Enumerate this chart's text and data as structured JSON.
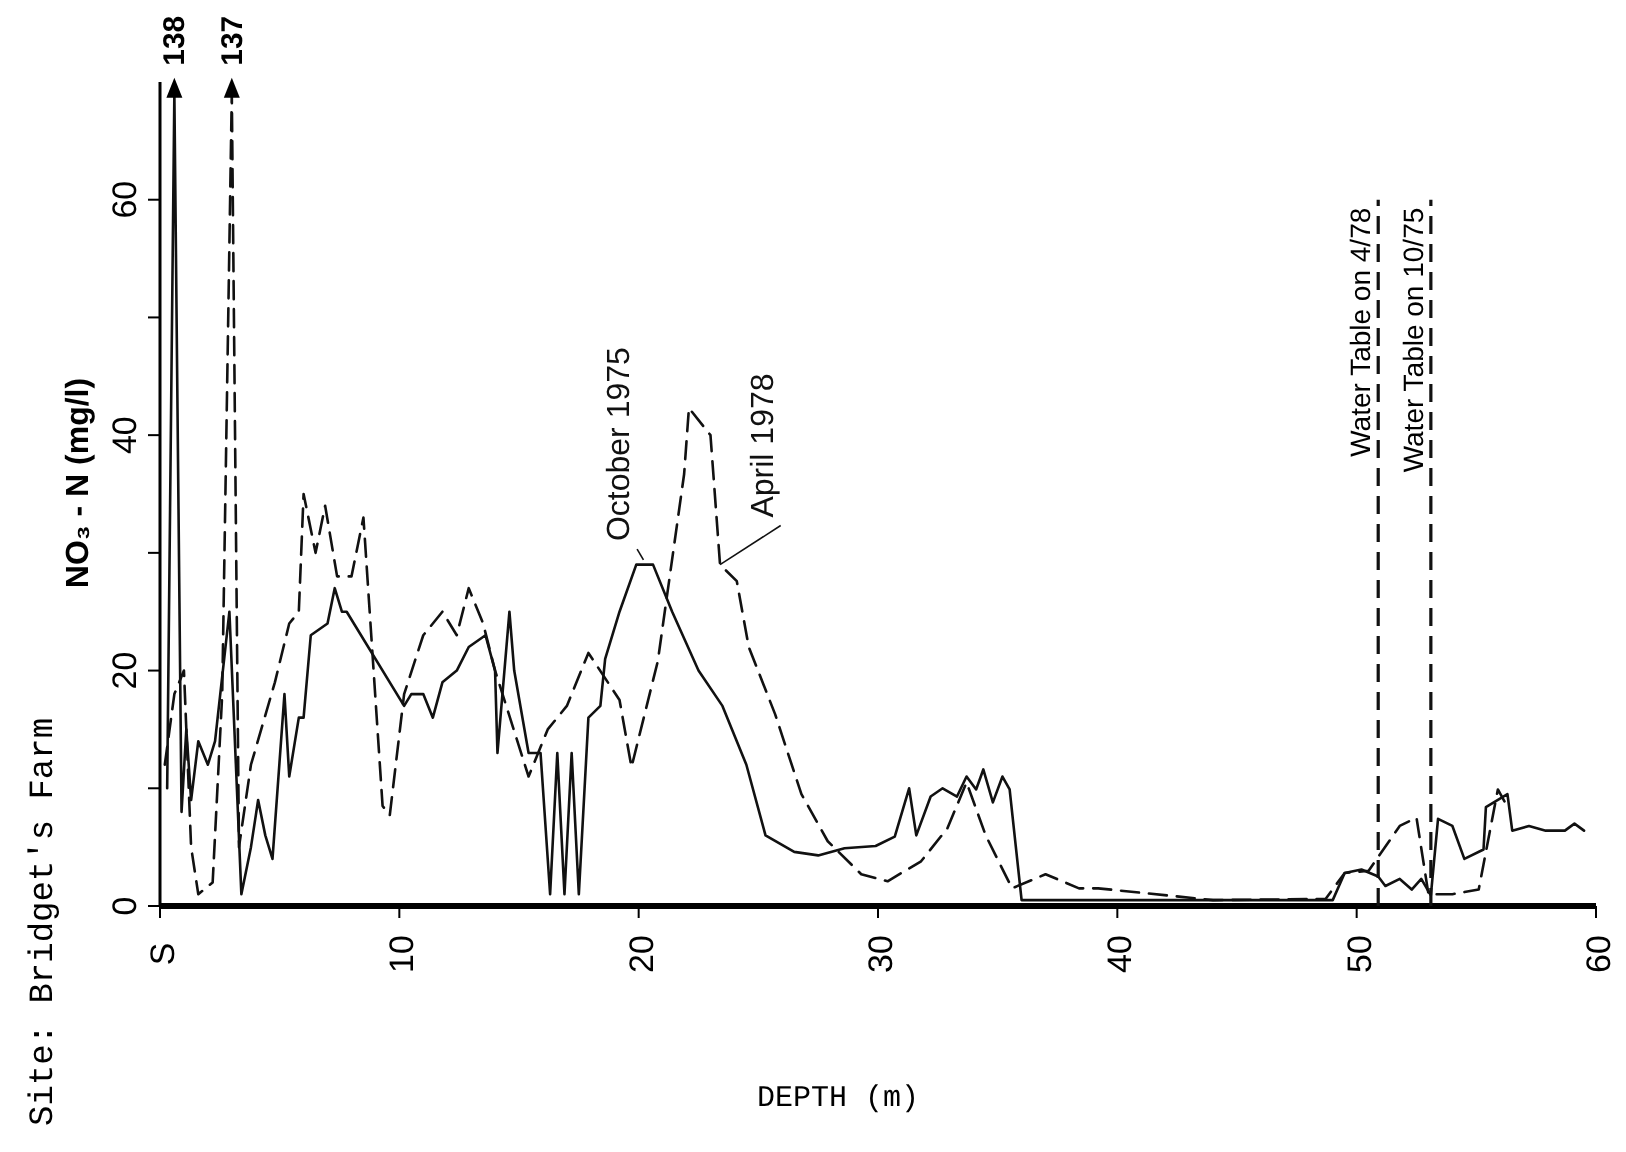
{
  "chart_data": {
    "type": "line",
    "title": "Site: Bridget's Farm",
    "xlabel": "DEPTH (m)",
    "ylabel": "NO₃ - N (mg/l)",
    "xlim": [
      0,
      60
    ],
    "xticks": [
      {
        "value": 0,
        "label": "S"
      },
      10,
      20,
      30,
      40,
      50,
      60
    ],
    "ylim": [
      0,
      70
    ],
    "yticks": [
      0,
      {
        "value": 10,
        "label": null
      },
      20,
      {
        "value": 30,
        "label": null
      },
      40,
      {
        "value": 50,
        "label": null
      },
      60
    ],
    "grid": false,
    "marker": "none",
    "series": [
      {
        "name": "October 1975",
        "color": "#111111",
        "line_style": "solid",
        "x": [
          0.3,
          0.6,
          0.9,
          1.1,
          1.3,
          1.6,
          2.0,
          2.3,
          2.9,
          3.4,
          3.8,
          4.1,
          4.4,
          4.7,
          5.2,
          5.4,
          5.8,
          6.0,
          6.3,
          7.0,
          7.3,
          7.6,
          7.8,
          10.2,
          10.5,
          11.0,
          11.4,
          11.8,
          12.4,
          12.9,
          13.6,
          14.0,
          14.1,
          14.6,
          14.8,
          15.4,
          15.9,
          16.3,
          16.6,
          16.9,
          17.2,
          17.5,
          17.9,
          18.4,
          18.6,
          19.2,
          19.9,
          20.6,
          21.4,
          22.5,
          23.5,
          24.5,
          25.3,
          26.5,
          27.5,
          28.6,
          29.9,
          30.7,
          31.3,
          31.6,
          32.2,
          32.7,
          33.3,
          33.7,
          34.1,
          34.4,
          34.8,
          35.2,
          35.5,
          36.0,
          49.0,
          49.5,
          50.2,
          50.9,
          51.2,
          51.8,
          52.3,
          52.7,
          53.1,
          53.4,
          54.0,
          54.5,
          55.3,
          55.4,
          56.3,
          56.5,
          57.2,
          57.9,
          58.7,
          59.1,
          59.5
        ],
        "values": [
          10,
          69,
          8,
          15,
          9,
          14,
          12,
          14,
          25,
          1,
          5,
          9,
          6,
          4,
          18,
          11,
          16,
          16,
          23,
          24,
          27,
          25,
          25,
          17,
          18,
          18,
          16,
          19,
          20,
          22,
          23,
          20,
          13,
          25,
          20,
          13,
          13,
          1,
          13,
          1,
          13,
          1,
          16,
          17,
          21,
          25,
          29,
          29,
          25,
          20,
          17,
          12,
          6,
          4.6,
          4.3,
          4.9,
          5.1,
          5.9,
          10,
          6,
          9.3,
          10,
          9.3,
          11,
          9.9,
          11.6,
          8.8,
          11,
          9.9,
          0.5,
          0.5,
          2.8,
          3.1,
          2.5,
          1.7,
          2.3,
          1.4,
          2.3,
          0.9,
          7.4,
          6.8,
          4,
          4.8,
          8.4,
          9.5,
          6.4,
          6.8,
          6.4,
          6.4,
          7,
          6.4
        ]
      },
      {
        "name": "April 1978",
        "color": "#111111",
        "line_style": "dashed",
        "x": [
          0.2,
          0.6,
          1.0,
          1.3,
          1.6,
          2.2,
          2.6,
          3.0,
          3.3,
          3.8,
          4.8,
          5.4,
          5.8,
          6.0,
          6.5,
          6.9,
          7.4,
          8.0,
          8.5,
          9.3,
          9.6,
          10.2,
          11.0,
          11.8,
          12.4,
          12.9,
          13.5,
          14.0,
          15.4,
          16.2,
          17.0,
          17.9,
          19.2,
          19.7,
          20.8,
          21.9,
          22.1,
          23.0,
          23.4,
          24.1,
          24.6,
          25.7,
          26.8,
          27.9,
          29.3,
          30.4,
          31.8,
          32.9,
          33.7,
          34.5,
          35.6,
          37.0,
          38.4,
          39.2,
          44.0,
          48.7,
          49.5,
          50.5,
          51.8,
          52.5,
          53.0,
          54.0,
          55.1,
          55.9,
          56.2
        ],
        "values": [
          12,
          18,
          20,
          5,
          1,
          2,
          18,
          69,
          5,
          12,
          19,
          24,
          25,
          35,
          30,
          34,
          28,
          28,
          33,
          8.5,
          7.7,
          18,
          23,
          25,
          23,
          27,
          24,
          20,
          11,
          15,
          17,
          21.5,
          17.5,
          11.8,
          20.8,
          36.7,
          42.3,
          40,
          29,
          27.6,
          22,
          16.3,
          9.5,
          5.5,
          2.7,
          2.1,
          3.8,
          6.6,
          10.5,
          6,
          1.5,
          2.7,
          1.5,
          1.5,
          0.5,
          0.6,
          2.8,
          3,
          6.8,
          7.5,
          1,
          1,
          1.4,
          9.9,
          8.8
        ]
      }
    ],
    "ref_lines": [
      {
        "axis": "x",
        "value": 50.9,
        "label": "Water Table on 4/78",
        "color": "#111111",
        "line_style": "dashed"
      },
      {
        "axis": "x",
        "value": 53.1,
        "label": "Water Table on 10/75",
        "color": "#111111",
        "line_style": "dashed"
      }
    ],
    "annotations": [
      {
        "text": "138",
        "x": 0.6,
        "y": 69
      },
      {
        "text": "137",
        "x": 3.0,
        "y": 69
      }
    ]
  }
}
